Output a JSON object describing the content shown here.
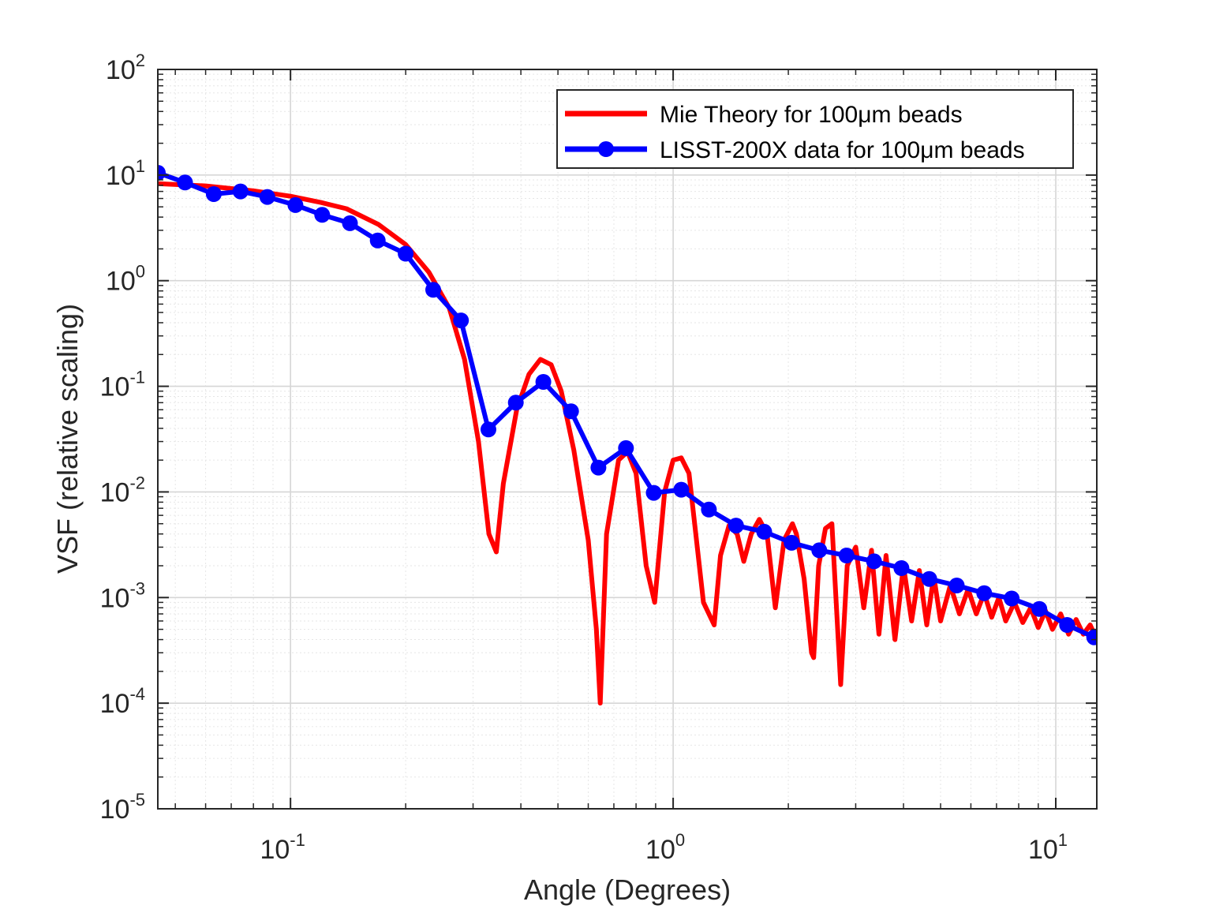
{
  "chart_data": {
    "type": "line",
    "xlabel": "Angle (Degrees)",
    "ylabel": "VSF (relative scaling)",
    "xscale": "log",
    "yscale": "log",
    "xlim": [
      0.045,
      12.8
    ],
    "ylim": [
      1e-05,
      100
    ],
    "grid": true,
    "minor_grid": true,
    "legend_position": "top-right",
    "x_ticks": [
      {
        "base": "10",
        "exp": "-1",
        "value": 0.1
      },
      {
        "base": "10",
        "exp": "0",
        "value": 1
      },
      {
        "base": "10",
        "exp": "1",
        "value": 10
      }
    ],
    "y_ticks": [
      {
        "base": "10",
        "exp": "2",
        "value": 100
      },
      {
        "base": "10",
        "exp": "1",
        "value": 10
      },
      {
        "base": "10",
        "exp": "0",
        "value": 1
      },
      {
        "base": "10",
        "exp": "-1",
        "value": 0.1
      },
      {
        "base": "10",
        "exp": "-2",
        "value": 0.01
      },
      {
        "base": "10",
        "exp": "-3",
        "value": 0.001
      },
      {
        "base": "10",
        "exp": "-4",
        "value": 0.0001
      },
      {
        "base": "10",
        "exp": "-5",
        "value": 1e-05
      }
    ],
    "series": [
      {
        "name": "Mie Theory for 100μm beads",
        "color": "#ff0000",
        "marker": "none",
        "x": [
          0.045,
          0.06,
          0.08,
          0.1,
          0.12,
          0.14,
          0.17,
          0.2,
          0.23,
          0.26,
          0.285,
          0.31,
          0.33,
          0.345,
          0.36,
          0.39,
          0.42,
          0.45,
          0.48,
          0.51,
          0.55,
          0.6,
          0.63,
          0.645,
          0.67,
          0.72,
          0.76,
          0.8,
          0.85,
          0.895,
          0.95,
          1.0,
          1.05,
          1.1,
          1.2,
          1.28,
          1.33,
          1.4,
          1.47,
          1.53,
          1.6,
          1.68,
          1.76,
          1.85,
          1.95,
          2.05,
          2.1,
          2.2,
          2.3,
          2.33,
          2.4,
          2.5,
          2.6,
          2.7,
          2.74,
          2.85,
          3.0,
          3.15,
          3.3,
          3.45,
          3.6,
          3.8,
          4.0,
          4.2,
          4.4,
          4.6,
          4.8,
          5.0,
          5.3,
          5.6,
          5.9,
          6.2,
          6.5,
          6.8,
          7.1,
          7.4,
          7.8,
          8.2,
          8.6,
          9.0,
          9.4,
          9.8,
          10.3,
          10.8,
          11.3,
          11.8,
          12.3,
          12.8
        ],
        "y": [
          8.3,
          7.9,
          7.1,
          6.3,
          5.5,
          4.8,
          3.4,
          2.2,
          1.2,
          0.55,
          0.18,
          0.03,
          0.004,
          0.0027,
          0.012,
          0.06,
          0.13,
          0.18,
          0.16,
          0.09,
          0.025,
          0.0035,
          0.0005,
          0.0001,
          0.004,
          0.02,
          0.024,
          0.015,
          0.002,
          0.0009,
          0.01,
          0.02,
          0.021,
          0.015,
          0.0009,
          0.00055,
          0.0025,
          0.0048,
          0.004,
          0.0022,
          0.004,
          0.0055,
          0.004,
          0.0008,
          0.0035,
          0.005,
          0.004,
          0.0015,
          0.0003,
          0.00027,
          0.002,
          0.0045,
          0.005,
          0.0004,
          0.00015,
          0.002,
          0.003,
          0.0008,
          0.0028,
          0.00045,
          0.0025,
          0.0004,
          0.002,
          0.0006,
          0.0018,
          0.00055,
          0.0016,
          0.0006,
          0.0013,
          0.0007,
          0.0012,
          0.0007,
          0.0011,
          0.00065,
          0.001,
          0.0006,
          0.0009,
          0.00058,
          0.0008,
          0.00052,
          0.00075,
          0.0005,
          0.0007,
          0.00045,
          0.00062,
          0.00045,
          0.00055,
          0.0004
        ]
      },
      {
        "name": "LISST-200X data for 100μm beads",
        "color": "#0000ff",
        "marker": "circle",
        "x": [
          0.045,
          0.053,
          0.063,
          0.074,
          0.087,
          0.103,
          0.121,
          0.143,
          0.169,
          0.2,
          0.236,
          0.279,
          0.329,
          0.388,
          0.458,
          0.541,
          0.638,
          0.753,
          0.89,
          1.05,
          1.24,
          1.46,
          1.73,
          2.04,
          2.41,
          2.84,
          3.35,
          3.95,
          4.67,
          5.51,
          6.5,
          7.67,
          9.06,
          10.7,
          12.6
        ],
        "y": [
          10.5,
          8.5,
          6.6,
          7.0,
          6.2,
          5.2,
          4.2,
          3.5,
          2.4,
          1.8,
          0.82,
          0.42,
          0.039,
          0.07,
          0.11,
          0.058,
          0.017,
          0.026,
          0.0098,
          0.0105,
          0.0068,
          0.0048,
          0.0042,
          0.0033,
          0.0028,
          0.0025,
          0.0022,
          0.0019,
          0.0015,
          0.0013,
          0.0011,
          0.00098,
          0.00078,
          0.00055,
          0.00042
        ]
      }
    ]
  }
}
